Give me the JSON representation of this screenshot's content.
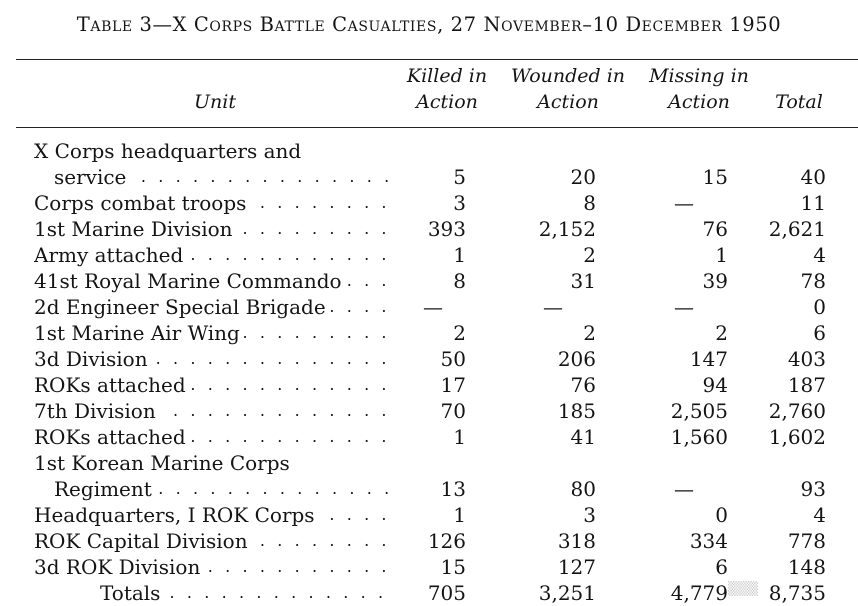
{
  "title": "Table 3—X Corps Battle Casualties, 27 November–10 December 1950",
  "headers": {
    "unit": "Unit",
    "killed": [
      "Killed in",
      "Action"
    ],
    "wounded": [
      "Wounded in",
      "Action"
    ],
    "missing": [
      "Missing in",
      "Action"
    ],
    "total": "Total"
  },
  "rows": [
    {
      "unit": "X Corps headquarters and",
      "killed": "",
      "wounded": "",
      "missing": "",
      "total": ""
    },
    {
      "unit": "service",
      "indent": true,
      "killed": "5",
      "wounded": "20",
      "missing": "15",
      "total": "40"
    },
    {
      "unit": "Corps combat troops",
      "killed": "3",
      "wounded": "8",
      "missing": "—",
      "total": "11"
    },
    {
      "unit": "1st Marine Division",
      "killed": "393",
      "wounded": "2,152",
      "missing": "76",
      "total": "2,621"
    },
    {
      "unit": "Army attached",
      "killed": "1",
      "wounded": "2",
      "missing": "1",
      "total": "4"
    },
    {
      "unit": "41st Royal Marine Commando",
      "killed": "8",
      "wounded": "31",
      "missing": "39",
      "total": "78"
    },
    {
      "unit": "2d Engineer Special Brigade",
      "killed": "—",
      "wounded": "—",
      "missing": "—",
      "total": "0"
    },
    {
      "unit": "1st Marine Air Wing",
      "killed": "2",
      "wounded": "2",
      "missing": "2",
      "total": "6"
    },
    {
      "unit": "3d Division",
      "killed": "50",
      "wounded": "206",
      "missing": "147",
      "total": "403"
    },
    {
      "unit": "ROKs attached",
      "killed": "17",
      "wounded": "76",
      "missing": "94",
      "total": "187"
    },
    {
      "unit": "7th Division",
      "killed": "70",
      "wounded": "185",
      "missing": "2,505",
      "total": "2,760"
    },
    {
      "unit": "ROKs attached",
      "killed": "1",
      "wounded": "41",
      "missing": "1,560",
      "total": "1,602"
    },
    {
      "unit": "1st Korean Marine Corps",
      "killed": "",
      "wounded": "",
      "missing": "",
      "total": ""
    },
    {
      "unit": "Regiment",
      "indent": true,
      "killed": "13",
      "wounded": "80",
      "missing": "—",
      "total": "93"
    },
    {
      "unit": "Headquarters, I ROK Corps",
      "killed": "1",
      "wounded": "3",
      "missing": "0",
      "total": "4"
    },
    {
      "unit": "ROK Capital Division",
      "killed": "126",
      "wounded": "318",
      "missing": "334",
      "total": "778"
    },
    {
      "unit": "3d ROK Division",
      "killed": "15",
      "wounded": "127",
      "missing": "6",
      "total": "148"
    },
    {
      "unit": "Totals",
      "indent": true,
      "totals": true,
      "killed": "705",
      "wounded": "3,251",
      "missing": "4,779",
      "total": "8,735"
    }
  ]
}
